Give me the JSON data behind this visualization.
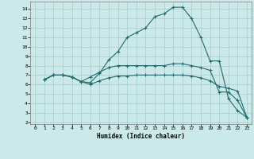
{
  "xlabel": "Humidex (Indice chaleur)",
  "background_color": "#cce9e9",
  "grid_color": "#aacfcf",
  "line_color": "#1e6b6b",
  "xlim": [
    -0.5,
    23.5
  ],
  "ylim": [
    1.8,
    14.8
  ],
  "xticks": [
    0,
    1,
    2,
    3,
    4,
    5,
    6,
    7,
    8,
    9,
    10,
    11,
    12,
    13,
    14,
    15,
    16,
    17,
    18,
    19,
    20,
    21,
    22,
    23
  ],
  "yticks": [
    2,
    3,
    4,
    5,
    6,
    7,
    8,
    9,
    10,
    11,
    12,
    13,
    14
  ],
  "lines": [
    {
      "x": [
        1,
        2,
        3,
        4,
        5,
        6,
        7,
        8,
        9,
        10,
        11,
        12,
        13,
        14,
        15,
        16,
        17,
        18,
        19,
        20,
        21,
        22,
        23
      ],
      "y": [
        6.5,
        7.0,
        7.0,
        6.8,
        6.3,
        6.2,
        7.2,
        8.6,
        9.5,
        11.0,
        11.5,
        12.0,
        13.2,
        13.5,
        14.2,
        14.2,
        13.0,
        11.0,
        8.5,
        8.5,
        4.5,
        3.2,
        2.5
      ]
    },
    {
      "x": [
        1,
        2,
        3,
        4,
        5,
        6,
        7,
        8,
        9,
        10,
        11,
        12,
        13,
        14,
        15,
        16,
        17,
        18,
        19,
        20,
        21,
        22,
        23
      ],
      "y": [
        6.5,
        7.0,
        7.0,
        6.8,
        6.3,
        6.8,
        7.3,
        7.8,
        8.0,
        8.0,
        8.0,
        8.0,
        8.0,
        8.0,
        8.2,
        8.2,
        8.0,
        7.8,
        7.5,
        5.2,
        5.2,
        4.3,
        2.5
      ]
    },
    {
      "x": [
        1,
        2,
        3,
        4,
        5,
        6,
        7,
        8,
        9,
        10,
        11,
        12,
        13,
        14,
        15,
        16,
        17,
        18,
        19,
        20,
        21,
        22,
        23
      ],
      "y": [
        6.5,
        7.0,
        7.0,
        6.8,
        6.3,
        6.0,
        6.4,
        6.7,
        6.9,
        6.9,
        7.0,
        7.0,
        7.0,
        7.0,
        7.0,
        7.0,
        6.9,
        6.7,
        6.4,
        5.8,
        5.6,
        5.3,
        2.5
      ]
    }
  ]
}
